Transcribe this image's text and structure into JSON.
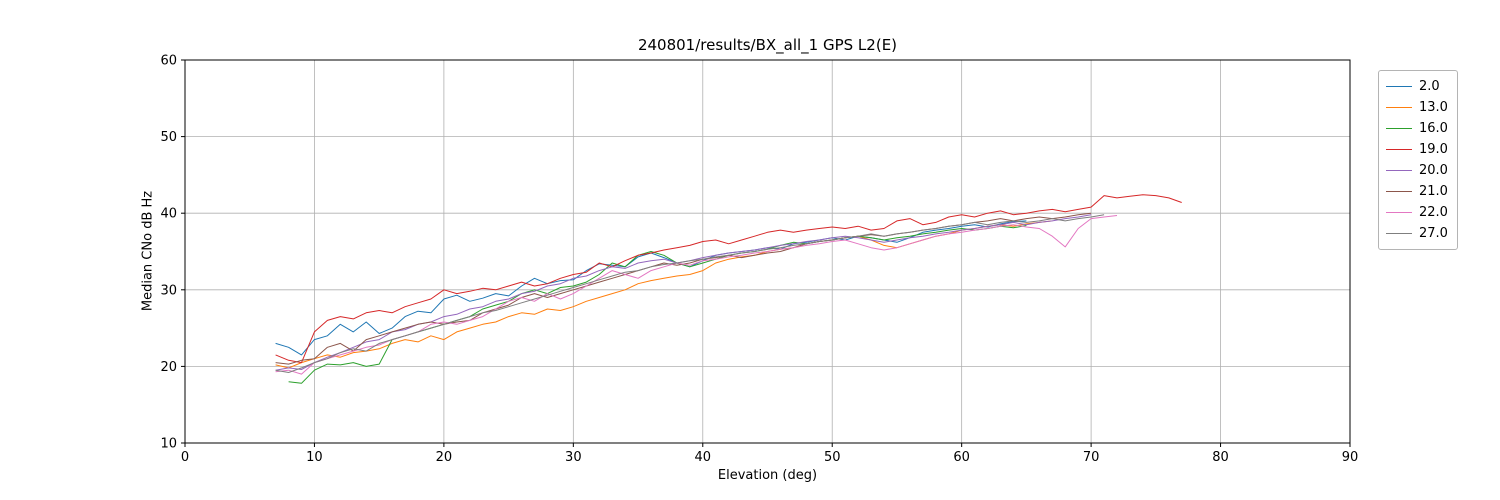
{
  "chart_data": {
    "type": "line",
    "title": "240801/results/BX_all_1 GPS L2(E)",
    "xlabel": "Elevation (deg)",
    "ylabel": "Median CNo dB Hz",
    "xlim": [
      0,
      90
    ],
    "ylim": [
      10,
      60
    ],
    "xticks": [
      0,
      10,
      20,
      30,
      40,
      50,
      60,
      70,
      80,
      90
    ],
    "yticks": [
      10,
      20,
      30,
      40,
      50,
      60
    ],
    "grid": true,
    "grid_color": "#b0b0b0",
    "spine_color": "#000000",
    "legend_position": "outside-right",
    "series": [
      {
        "name": "2.0",
        "color": "#1f77b4",
        "x0": 7,
        "step": 1,
        "y": [
          23.0,
          22.5,
          21.5,
          23.5,
          24.0,
          25.5,
          24.5,
          25.8,
          24.3,
          25.0,
          26.5,
          27.2,
          27.0,
          28.8,
          29.3,
          28.5,
          28.9,
          29.5,
          29.2,
          30.5,
          31.5,
          30.8,
          31.2,
          31.3,
          32.5,
          33.4,
          33.2,
          33.0,
          34.3,
          34.8,
          34.2,
          33.5,
          33.0,
          33.8,
          34.5,
          34.8,
          35.0,
          35.2,
          35.5,
          35.3,
          36.0,
          36.2,
          36.5,
          36.8,
          36.5,
          37.0,
          36.8,
          36.5,
          36.2,
          36.8,
          37.5,
          37.8,
          38.0,
          38.3,
          38.5,
          38.2,
          38.6,
          38.9,
          39.0
        ]
      },
      {
        "name": "13.0",
        "color": "#ff7f0e",
        "x0": 7,
        "step": 1,
        "y": [
          20.2,
          19.8,
          20.5,
          21.0,
          21.5,
          21.2,
          21.8,
          22.0,
          22.3,
          23.0,
          23.5,
          23.2,
          24.0,
          23.5,
          24.5,
          25.0,
          25.5,
          25.8,
          26.5,
          27.0,
          26.8,
          27.5,
          27.3,
          27.8,
          28.5,
          29.0,
          29.5,
          30.0,
          30.8,
          31.2,
          31.5,
          31.8,
          32.0,
          32.5,
          33.5,
          34.0,
          34.3,
          34.5,
          35.0,
          35.3,
          35.5,
          36.0,
          36.3,
          36.5,
          36.8,
          37.0,
          36.5,
          35.8,
          35.5,
          36.0,
          36.5,
          37.0,
          37.3,
          37.8,
          38.0,
          38.3,
          38.5,
          38.3,
          38.6,
          38.8,
          39.0
        ]
      },
      {
        "name": "16.0",
        "color": "#2ca02c",
        "x0": 8,
        "step": 1,
        "y": [
          18.0,
          17.8,
          19.5,
          20.3,
          20.2,
          20.5,
          20.0,
          20.3,
          23.5,
          24.0,
          24.5,
          25.0,
          25.5,
          26.0,
          26.5,
          27.5,
          28.0,
          28.5,
          29.5,
          30.0,
          29.5,
          30.3,
          30.5,
          31.0,
          32.0,
          33.5,
          33.0,
          34.5,
          35.0,
          34.5,
          33.5,
          33.0,
          33.5,
          34.0,
          34.5,
          34.8,
          35.0,
          35.3,
          35.8,
          36.2,
          36.0,
          36.3,
          36.5,
          36.8,
          37.0,
          36.8,
          36.5,
          36.8,
          37.0,
          37.3,
          37.5,
          37.8,
          38.0,
          37.8,
          38.0,
          38.3,
          38.1,
          38.4
        ]
      },
      {
        "name": "19.0",
        "color": "#d62728",
        "x0": 7,
        "step": 1,
        "y": [
          21.5,
          20.8,
          20.5,
          24.5,
          26.0,
          26.5,
          26.2,
          27.0,
          27.3,
          27.0,
          27.8,
          28.3,
          28.8,
          30.0,
          29.5,
          29.8,
          30.2,
          30.0,
          30.5,
          31.0,
          30.5,
          30.8,
          31.5,
          32.0,
          32.3,
          33.5,
          33.0,
          33.8,
          34.5,
          34.8,
          35.2,
          35.5,
          35.8,
          36.3,
          36.5,
          36.0,
          36.5,
          37.0,
          37.5,
          37.8,
          37.5,
          37.8,
          38.0,
          38.2,
          38.0,
          38.3,
          37.8,
          38.0,
          39.0,
          39.3,
          38.5,
          38.8,
          39.5,
          39.8,
          39.5,
          40.0,
          40.3,
          39.8,
          40.0,
          40.3,
          40.5,
          40.2,
          40.5,
          40.8,
          42.3,
          42.0,
          42.2,
          42.4,
          42.3,
          42.0,
          41.4
        ]
      },
      {
        "name": "20.0",
        "color": "#9467bd",
        "x0": 7,
        "step": 1,
        "y": [
          19.5,
          19.8,
          19.6,
          20.5,
          21.2,
          21.8,
          22.5,
          23.2,
          23.5,
          24.5,
          24.8,
          25.5,
          25.8,
          26.5,
          26.8,
          27.5,
          27.8,
          28.5,
          28.8,
          29.5,
          29.8,
          30.5,
          30.8,
          31.5,
          31.8,
          32.5,
          33.0,
          32.8,
          33.5,
          33.8,
          34.0,
          33.5,
          33.8,
          34.2,
          34.5,
          34.8,
          35.0,
          35.2,
          35.5,
          35.8,
          36.0,
          36.3,
          36.5,
          36.8,
          37.0,
          36.8,
          36.5,
          36.2,
          36.5,
          36.8,
          37.0,
          37.3,
          37.5,
          37.8,
          38.0,
          38.3,
          38.5,
          38.8,
          38.5,
          38.8,
          39.0,
          39.3,
          39.5,
          39.8
        ]
      },
      {
        "name": "21.0",
        "color": "#8c564b",
        "x0": 7,
        "step": 1,
        "y": [
          20.5,
          20.3,
          20.8,
          21.0,
          22.5,
          23.0,
          22.0,
          23.5,
          24.0,
          24.5,
          25.0,
          25.5,
          25.8,
          25.5,
          25.8,
          26.0,
          27.0,
          27.5,
          28.0,
          29.0,
          29.5,
          29.0,
          29.5,
          30.0,
          30.5,
          31.0,
          31.5,
          32.0,
          32.5,
          33.0,
          33.5,
          33.2,
          33.5,
          34.0,
          34.2,
          34.5,
          34.2,
          34.5,
          34.8,
          35.0,
          35.5,
          36.0,
          36.3,
          36.5,
          36.8,
          37.0,
          37.2,
          37.0,
          37.3,
          37.5,
          37.8,
          38.0,
          38.3,
          38.5,
          38.8,
          39.0,
          39.3,
          39.0,
          39.3,
          39.5,
          39.3,
          39.5,
          39.8,
          40.0
        ]
      },
      {
        "name": "22.0",
        "color": "#e377c2",
        "x0": 7,
        "step": 1,
        "y": [
          19.3,
          19.5,
          19.0,
          20.5,
          21.0,
          21.5,
          22.0,
          22.5,
          22.8,
          23.5,
          24.0,
          24.5,
          25.5,
          25.8,
          25.5,
          26.0,
          26.5,
          27.5,
          28.5,
          29.0,
          28.5,
          29.5,
          28.8,
          29.5,
          30.5,
          31.5,
          32.5,
          32.0,
          31.5,
          32.5,
          33.0,
          33.5,
          33.2,
          33.8,
          34.0,
          34.3,
          34.5,
          34.8,
          35.0,
          35.3,
          35.5,
          35.8,
          36.0,
          36.3,
          36.5,
          36.0,
          35.5,
          35.2,
          35.5,
          36.0,
          36.5,
          37.0,
          37.3,
          37.5,
          37.8,
          38.0,
          38.3,
          38.5,
          38.2,
          38.0,
          37.0,
          35.6,
          38.0,
          39.3,
          39.5,
          39.7
        ]
      },
      {
        "name": "27.0",
        "color": "#7f7f7f",
        "x0": 7,
        "step": 1,
        "y": [
          19.5,
          19.2,
          19.8,
          20.5,
          21.0,
          21.8,
          22.3,
          22.0,
          23.0,
          23.5,
          24.0,
          24.5,
          25.0,
          25.5,
          26.0,
          26.5,
          27.0,
          27.3,
          27.8,
          28.3,
          28.8,
          29.3,
          29.8,
          30.3,
          30.8,
          31.3,
          31.8,
          32.3,
          32.5,
          33.0,
          33.3,
          33.5,
          33.8,
          34.0,
          34.3,
          34.5,
          34.8,
          35.0,
          35.3,
          35.5,
          35.8,
          36.0,
          36.3,
          36.5,
          36.8,
          37.0,
          37.3,
          37.0,
          37.3,
          37.5,
          37.8,
          38.0,
          38.3,
          38.5,
          38.8,
          38.5,
          38.8,
          39.0,
          38.8,
          39.0,
          39.3,
          39.0,
          39.3,
          39.5,
          39.8
        ]
      }
    ]
  }
}
